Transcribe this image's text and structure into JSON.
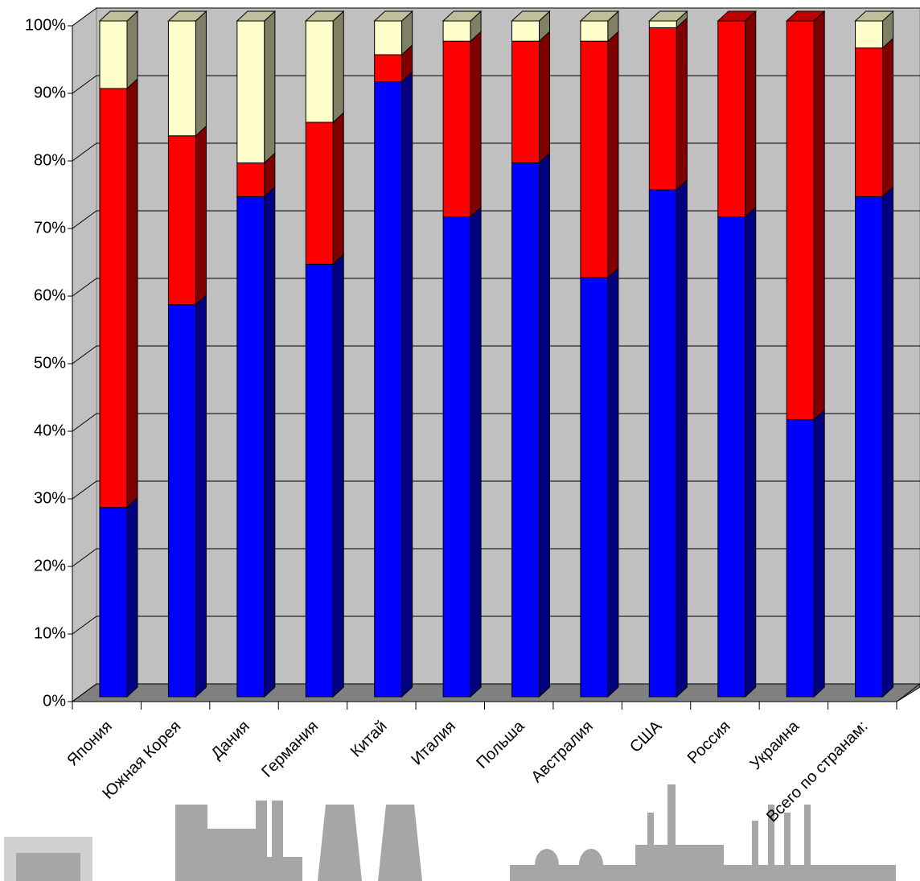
{
  "chart_data": {
    "type": "stacked_bar_3d",
    "categories": [
      "Япония",
      "Южная Корея",
      "Дания",
      "Германия",
      "Китай",
      "Италия",
      "Польша",
      "Австралия",
      "США",
      "Россия",
      "Украина",
      "Всего по странам:"
    ],
    "series": [
      {
        "color": "#0000ff",
        "values": [
          28,
          58,
          74,
          64,
          91,
          71,
          79,
          62,
          75,
          71,
          41,
          74
        ]
      },
      {
        "color": "#ff0000",
        "values": [
          62,
          25,
          5,
          21,
          4,
          26,
          18,
          35,
          24,
          29,
          59,
          22
        ]
      },
      {
        "color": "#ffffcc",
        "values": [
          10,
          17,
          21,
          15,
          5,
          3,
          3,
          3,
          1,
          0,
          0,
          4
        ]
      }
    ],
    "ylim": [
      0,
      100
    ],
    "yticks": [
      {
        "value": 0,
        "label": "0%"
      },
      {
        "value": 10,
        "label": "10%"
      },
      {
        "value": 20,
        "label": "20%"
      },
      {
        "value": 30,
        "label": "30%"
      },
      {
        "value": 40,
        "label": "40%"
      },
      {
        "value": 50,
        "label": "50%"
      },
      {
        "value": 60,
        "label": "60%"
      },
      {
        "value": 70,
        "label": "70%"
      },
      {
        "value": 80,
        "label": "80%"
      },
      {
        "value": 90,
        "label": "90%"
      },
      {
        "value": 100,
        "label": "100%"
      }
    ],
    "grid": true
  }
}
